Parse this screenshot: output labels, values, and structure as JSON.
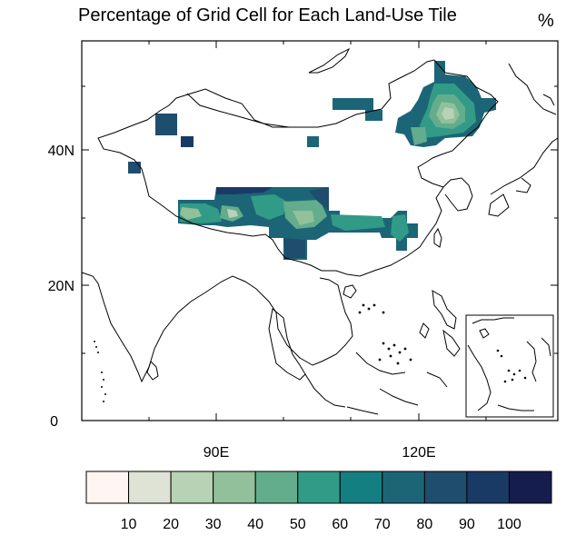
{
  "title": "Percentage of Grid Cell for Each Land-Use Tile",
  "unit": "%",
  "axes": {
    "y_labels": [
      "40N",
      "20N",
      "0"
    ],
    "x_labels": [
      "90E",
      "120E"
    ]
  },
  "legend": {
    "ticks": [
      "10",
      "20",
      "30",
      "40",
      "50",
      "60",
      "70",
      "80",
      "90",
      "100"
    ],
    "colors": [
      "#fff5f2",
      "#dfe3d5",
      "#b7d2b4",
      "#91c09a",
      "#63ac8c",
      "#329b87",
      "#137f80",
      "#1c6577",
      "#1f4d6e",
      "#1a3a66",
      "#151d4e"
    ]
  },
  "map": {
    "ocean_color": "#ffffff",
    "outline_color": "#000000"
  }
}
